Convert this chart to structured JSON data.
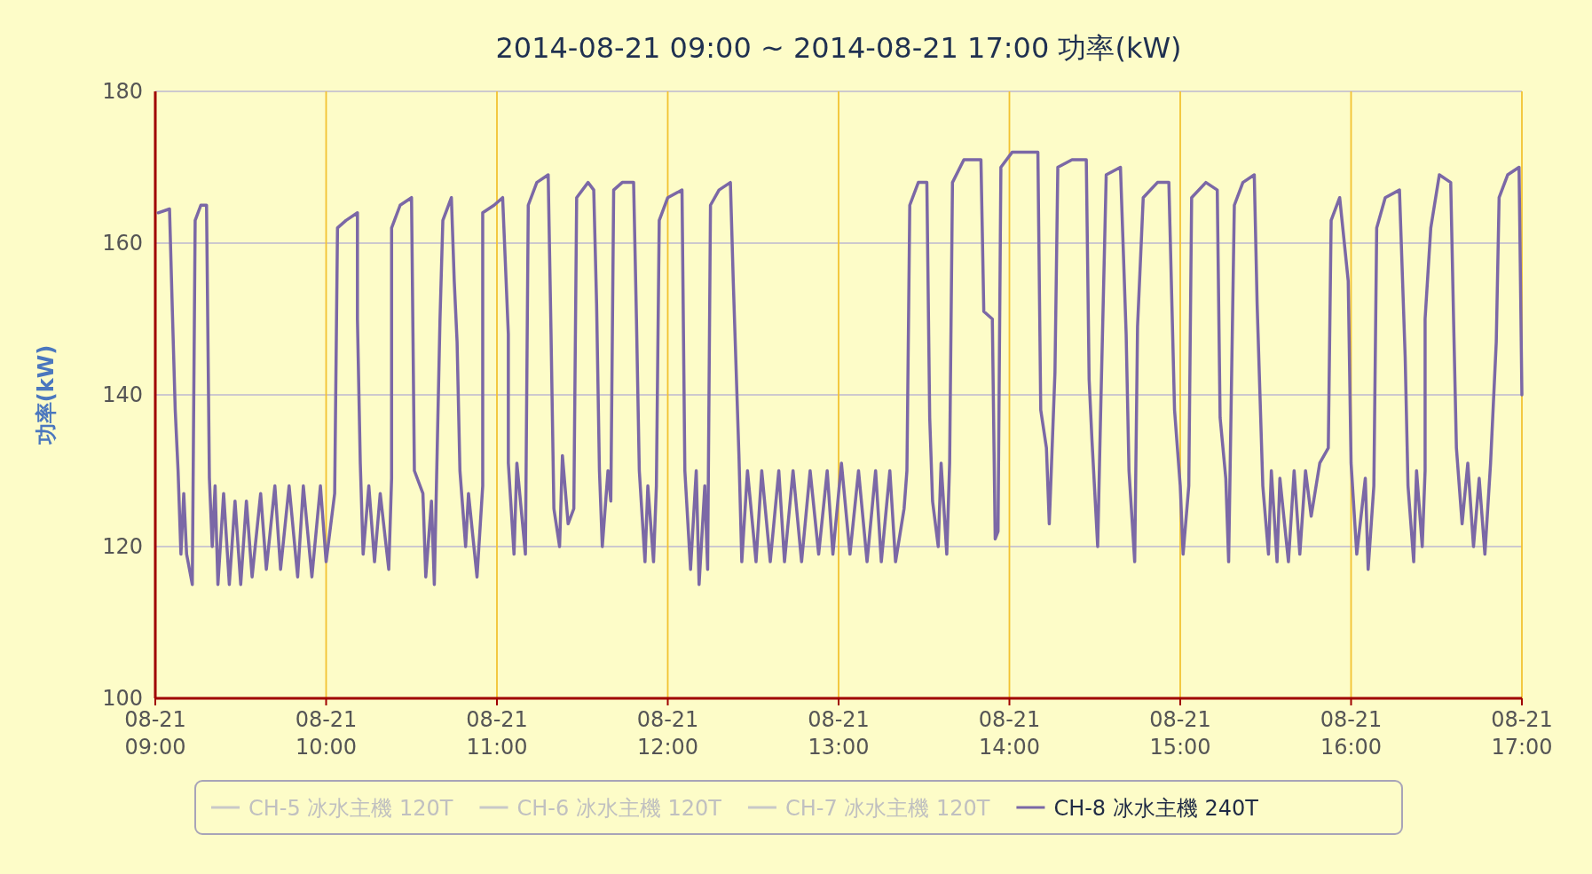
{
  "chart_data": {
    "type": "line",
    "title": "2014-08-21 09:00 ~ 2014-08-21 17:00 功率(kW)",
    "ylabel": "功率(kW)",
    "xlim": [
      "2014-08-21T09:00",
      "2014-08-21T17:00"
    ],
    "ylim": [
      100,
      180
    ],
    "yticks": [
      100,
      120,
      140,
      160,
      180
    ],
    "xticks": [
      {
        "value": "2014-08-21T09:00",
        "label": "08-21 09:00"
      },
      {
        "value": "2014-08-21T10:00",
        "label": "08-21 10:00"
      },
      {
        "value": "2014-08-21T11:00",
        "label": "08-21 11:00"
      },
      {
        "value": "2014-08-21T12:00",
        "label": "08-21 12:00"
      },
      {
        "value": "2014-08-21T13:00",
        "label": "08-21 13:00"
      },
      {
        "value": "2014-08-21T14:00",
        "label": "08-21 14:00"
      },
      {
        "value": "2014-08-21T15:00",
        "label": "08-21 15:00"
      },
      {
        "value": "2014-08-21T16:00",
        "label": "08-21 16:00"
      },
      {
        "value": "2014-08-21T17:00",
        "label": "08-21 17:00"
      }
    ],
    "grid": true,
    "legend": "bottom",
    "series": [
      {
        "name": "CH-5 冰水主機 120T",
        "color": "#c8c8c8"
      },
      {
        "name": "CH-6 冰水主機 120T",
        "color": "#c8c8c8"
      },
      {
        "name": "CH-7 冰水主機 120T",
        "color": "#c8c8c8"
      },
      {
        "name": "CH-8 冰水主機 240T",
        "color": "#7b68a6",
        "x": [
          "2014-08-21T09:01",
          "2014-08-21T09:05",
          "2014-08-21T09:06",
          "2014-08-21T09:07",
          "2014-08-21T09:08",
          "2014-08-21T09:09",
          "2014-08-21T09:10",
          "2014-08-21T09:11",
          "2014-08-21T09:13",
          "2014-08-21T09:14",
          "2014-08-21T09:16",
          "2014-08-21T09:18",
          "2014-08-21T09:19",
          "2014-08-21T09:20",
          "2014-08-21T09:21",
          "2014-08-21T09:22",
          "2014-08-21T09:24",
          "2014-08-21T09:26",
          "2014-08-21T09:28",
          "2014-08-21T09:30",
          "2014-08-21T09:32",
          "2014-08-21T09:34",
          "2014-08-21T09:37",
          "2014-08-21T09:39",
          "2014-08-21T09:42",
          "2014-08-21T09:44",
          "2014-08-21T09:47",
          "2014-08-21T09:50",
          "2014-08-21T09:52",
          "2014-08-21T09:55",
          "2014-08-21T09:58",
          "2014-08-21T10:00",
          "2014-08-21T10:03",
          "2014-08-21T10:04",
          "2014-08-21T10:07",
          "2014-08-21T10:11",
          "2014-08-21T10:11",
          "2014-08-21T10:12",
          "2014-08-21T10:13",
          "2014-08-21T10:15",
          "2014-08-21T10:17",
          "2014-08-21T10:19",
          "2014-08-21T10:22",
          "2014-08-21T10:23",
          "2014-08-21T10:23",
          "2014-08-21T10:26",
          "2014-08-21T10:30",
          "2014-08-21T10:31",
          "2014-08-21T10:34",
          "2014-08-21T10:35",
          "2014-08-21T10:37",
          "2014-08-21T10:38",
          "2014-08-21T10:40",
          "2014-08-21T10:41",
          "2014-08-21T10:44",
          "2014-08-21T10:45",
          "2014-08-21T10:46",
          "2014-08-21T10:47",
          "2014-08-21T10:49",
          "2014-08-21T10:50",
          "2014-08-21T10:53",
          "2014-08-21T10:55",
          "2014-08-21T10:55",
          "2014-08-21T10:59",
          "2014-08-21T11:02",
          "2014-08-21T11:04",
          "2014-08-21T11:04",
          "2014-08-21T11:06",
          "2014-08-21T11:07",
          "2014-08-21T11:10",
          "2014-08-21T11:11",
          "2014-08-21T11:14",
          "2014-08-21T11:18",
          "2014-08-21T11:19",
          "2014-08-21T11:20",
          "2014-08-21T11:22",
          "2014-08-21T11:23",
          "2014-08-21T11:25",
          "2014-08-21T11:27",
          "2014-08-21T11:28",
          "2014-08-21T11:32",
          "2014-08-21T11:34",
          "2014-08-21T11:35",
          "2014-08-21T11:36",
          "2014-08-21T11:37",
          "2014-08-21T11:39",
          "2014-08-21T11:40",
          "2014-08-21T11:41",
          "2014-08-21T11:44",
          "2014-08-21T11:48",
          "2014-08-21T11:49",
          "2014-08-21T11:50",
          "2014-08-21T11:52",
          "2014-08-21T11:53",
          "2014-08-21T11:55",
          "2014-08-21T11:56",
          "2014-08-21T11:57",
          "2014-08-21T12:00",
          "2014-08-21T12:05",
          "2014-08-21T12:06",
          "2014-08-21T12:08",
          "2014-08-21T12:10",
          "2014-08-21T12:11",
          "2014-08-21T12:13",
          "2014-08-21T12:14",
          "2014-08-21T12:15",
          "2014-08-21T12:18",
          "2014-08-21T12:22",
          "2014-08-21T12:23",
          "2014-08-21T12:25",
          "2014-08-21T12:26",
          "2014-08-21T12:28",
          "2014-08-21T12:31",
          "2014-08-21T12:33",
          "2014-08-21T12:36",
          "2014-08-21T12:39",
          "2014-08-21T12:41",
          "2014-08-21T12:44",
          "2014-08-21T12:47",
          "2014-08-21T12:50",
          "2014-08-21T12:53",
          "2014-08-21T12:56",
          "2014-08-21T12:58",
          "2014-08-21T13:01",
          "2014-08-21T13:04",
          "2014-08-21T13:07",
          "2014-08-21T13:10",
          "2014-08-21T13:13",
          "2014-08-21T13:15",
          "2014-08-21T13:18",
          "2014-08-21T13:20",
          "2014-08-21T13:23",
          "2014-08-21T13:24",
          "2014-08-21T13:25",
          "2014-08-21T13:28",
          "2014-08-21T13:31",
          "2014-08-21T13:32",
          "2014-08-21T13:33",
          "2014-08-21T13:35",
          "2014-08-21T13:36",
          "2014-08-21T13:38",
          "2014-08-21T13:39",
          "2014-08-21T13:40",
          "2014-08-21T13:44",
          "2014-08-21T13:50",
          "2014-08-21T13:51",
          "2014-08-21T13:54",
          "2014-08-21T13:55",
          "2014-08-21T13:56",
          "2014-08-21T13:57",
          "2014-08-21T14:01",
          "2014-08-21T14:10",
          "2014-08-21T14:11",
          "2014-08-21T14:13",
          "2014-08-21T14:14",
          "2014-08-21T14:16",
          "2014-08-21T14:17",
          "2014-08-21T14:22",
          "2014-08-21T14:27",
          "2014-08-21T14:28",
          "2014-08-21T14:29",
          "2014-08-21T14:31",
          "2014-08-21T14:32",
          "2014-08-21T14:34",
          "2014-08-21T14:39",
          "2014-08-21T14:41",
          "2014-08-21T14:42",
          "2014-08-21T14:44",
          "2014-08-21T14:45",
          "2014-08-21T14:47",
          "2014-08-21T14:52",
          "2014-08-21T14:56",
          "2014-08-21T14:58",
          "2014-08-21T15:00",
          "2014-08-21T15:01",
          "2014-08-21T15:03",
          "2014-08-21T15:04",
          "2014-08-21T15:09",
          "2014-08-21T15:13",
          "2014-08-21T15:14",
          "2014-08-21T15:16",
          "2014-08-21T15:17",
          "2014-08-21T15:19",
          "2014-08-21T15:22",
          "2014-08-21T15:26",
          "2014-08-21T15:27",
          "2014-08-21T15:29",
          "2014-08-21T15:31",
          "2014-08-21T15:32",
          "2014-08-21T15:34",
          "2014-08-21T15:35",
          "2014-08-21T15:38",
          "2014-08-21T15:40",
          "2014-08-21T15:42",
          "2014-08-21T15:44",
          "2014-08-21T15:46",
          "2014-08-21T15:49",
          "2014-08-21T15:52",
          "2014-08-21T15:53",
          "2014-08-21T15:56",
          "2014-08-21T15:59",
          "2014-08-21T16:00",
          "2014-08-21T16:02",
          "2014-08-21T16:05",
          "2014-08-21T16:06",
          "2014-08-21T16:08",
          "2014-08-21T16:09",
          "2014-08-21T16:12",
          "2014-08-21T16:17",
          "2014-08-21T16:19",
          "2014-08-21T16:20",
          "2014-08-21T16:22",
          "2014-08-21T16:23",
          "2014-08-21T16:25",
          "2014-08-21T16:26",
          "2014-08-21T16:26",
          "2014-08-21T16:28",
          "2014-08-21T16:31",
          "2014-08-21T16:35",
          "2014-08-21T16:36",
          "2014-08-21T16:37",
          "2014-08-21T16:39",
          "2014-08-21T16:41",
          "2014-08-21T16:43",
          "2014-08-21T16:45",
          "2014-08-21T16:47",
          "2014-08-21T16:49",
          "2014-08-21T16:51",
          "2014-08-21T16:52",
          "2014-08-21T16:55",
          "2014-08-21T16:59",
          "2014-08-21T17:00"
        ],
        "values": [
          164,
          164.5,
          151,
          138,
          130,
          119,
          127,
          119,
          115,
          163,
          165,
          165,
          129,
          120,
          128,
          115,
          127,
          115,
          126,
          115,
          126,
          116,
          127,
          117,
          128,
          117,
          128,
          116,
          128,
          116,
          128,
          118,
          127,
          162,
          163,
          164,
          150,
          131,
          119,
          128,
          118,
          127,
          117,
          129,
          162,
          165,
          166,
          130,
          127,
          116,
          126,
          115,
          150,
          163,
          166,
          155,
          147,
          130,
          120,
          127,
          116,
          128,
          164,
          165,
          166,
          148,
          131,
          119,
          131,
          119,
          165,
          168,
          169,
          148,
          125,
          120,
          132,
          123,
          125,
          166,
          168,
          167,
          152,
          130,
          120,
          130,
          126,
          167,
          168,
          168,
          150,
          130,
          118,
          128,
          118,
          128,
          163,
          166,
          167,
          130,
          117,
          130,
          115,
          128,
          117,
          165,
          167,
          168,
          155,
          132,
          118,
          130,
          118,
          130,
          118,
          130,
          118,
          130,
          118,
          130,
          119,
          130,
          119,
          131,
          119,
          130,
          118,
          130,
          118,
          130,
          118,
          125,
          130,
          165,
          168,
          168,
          137,
          126,
          120,
          131,
          119,
          131,
          168,
          171,
          171,
          151,
          150,
          121,
          122,
          170,
          172,
          172,
          138,
          133,
          123,
          143,
          170,
          171,
          171,
          142,
          134,
          120,
          137,
          169,
          170,
          148,
          130,
          118,
          149,
          166,
          168,
          168,
          138,
          128,
          119,
          128,
          166,
          168,
          167,
          137,
          129,
          118,
          165,
          168,
          169,
          152,
          128,
          119,
          130,
          118,
          129,
          118,
          130,
          119,
          130,
          124,
          131,
          133,
          163,
          166,
          155,
          131,
          119,
          129,
          117,
          128,
          162,
          166,
          167,
          145,
          128,
          118,
          130,
          120,
          130,
          150,
          162,
          169,
          168,
          150,
          133,
          123,
          131,
          120,
          129,
          119,
          131,
          147,
          166,
          169,
          170,
          140
        ]
      }
    ]
  }
}
